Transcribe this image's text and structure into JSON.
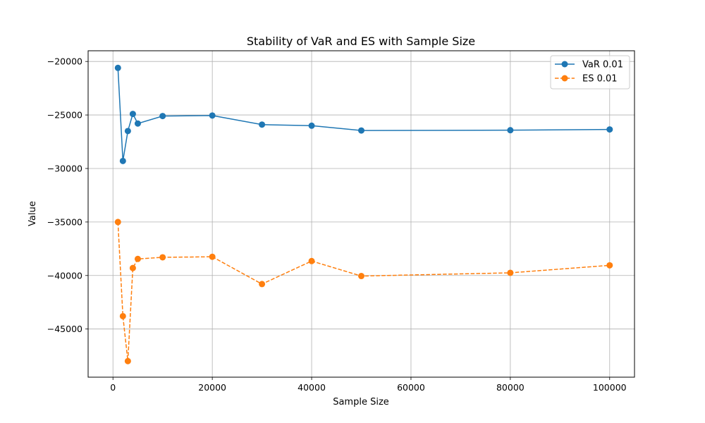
{
  "chart_data": {
    "type": "line",
    "title": "Stability of VaR and ES with Sample Size",
    "xlabel": "Sample Size",
    "ylabel": "Value",
    "xlim": [
      -5000,
      105000
    ],
    "ylim": [
      -49500,
      -19000
    ],
    "x_ticks": [
      0,
      20000,
      40000,
      60000,
      80000,
      100000
    ],
    "x_tick_labels": [
      "0",
      "20000",
      "40000",
      "60000",
      "80000",
      "100000"
    ],
    "y_ticks": [
      -20000,
      -25000,
      -30000,
      -35000,
      -40000,
      -45000
    ],
    "y_tick_labels": [
      "−20000",
      "−25000",
      "−30000",
      "−35000",
      "−40000",
      "−45000"
    ],
    "grid": true,
    "legend_position": "top-right",
    "x": [
      1000,
      2000,
      3000,
      4000,
      5000,
      10000,
      20000,
      30000,
      40000,
      50000,
      80000,
      100000
    ],
    "series": [
      {
        "name": "VaR 0.01",
        "color": "#1f77b4",
        "line_style": "solid",
        "marker": "circle",
        "values": [
          -20600,
          -29300,
          -26500,
          -24900,
          -25800,
          -25100,
          -25050,
          -25900,
          -26000,
          -26450,
          -26420,
          -26350
        ]
      },
      {
        "name": "ES 0.01",
        "color": "#ff7f0e",
        "line_style": "dashed",
        "marker": "circle",
        "values": [
          -35000,
          -43800,
          -48000,
          -39300,
          -38450,
          -38300,
          -38250,
          -40800,
          -38650,
          -40050,
          -39750,
          -39050
        ]
      }
    ]
  }
}
